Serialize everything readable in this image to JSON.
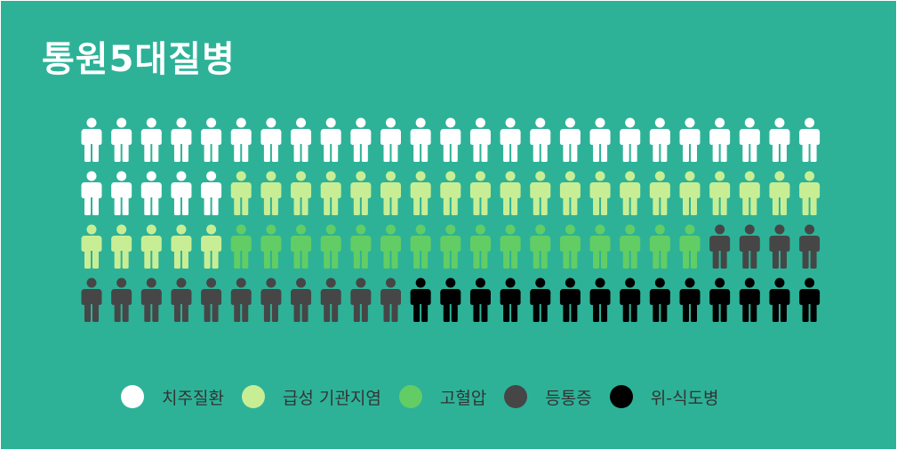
{
  "title": "통원5대질병",
  "chart_data": {
    "type": "pictograph",
    "icon": "person-icon",
    "units_per_row": 25,
    "row_count": 4,
    "total_units": 100,
    "categories": [
      "치주질환",
      "급성 기관지염",
      "고혈압",
      "등통증",
      "위-식도병"
    ],
    "values": [
      30,
      25,
      16,
      15,
      14
    ],
    "colors": [
      "#ffffff",
      "#c8ee95",
      "#62cd64",
      "#464646",
      "#000000"
    ]
  },
  "legend": [
    {
      "label": "치주질환",
      "color": "#ffffff"
    },
    {
      "label": "급성 기관지염",
      "color": "#c8ee95"
    },
    {
      "label": "고혈압",
      "color": "#62cd64"
    },
    {
      "label": "등통증",
      "color": "#464646"
    },
    {
      "label": "위-식도병",
      "color": "#000000"
    }
  ]
}
